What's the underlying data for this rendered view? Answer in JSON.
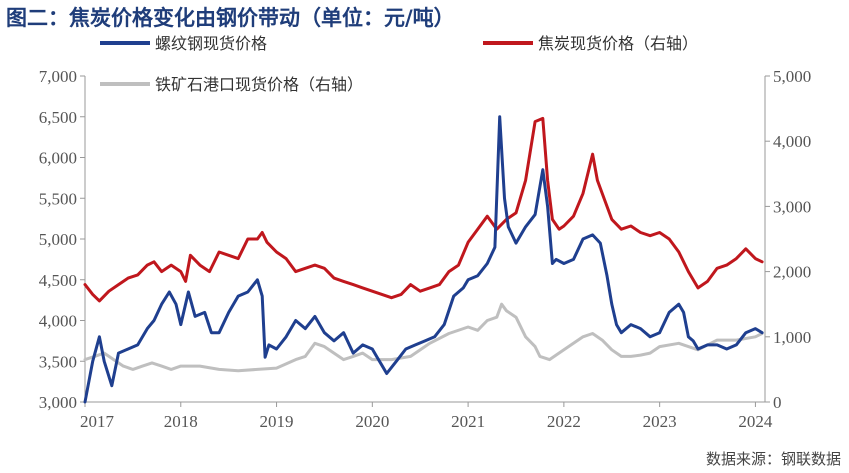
{
  "title": "图二：焦炭价格变化由钢价带动（单位：元/吨）",
  "source": "数据来源：钢联数据",
  "colors": {
    "rebar": "#1f3f8f",
    "coke": "#c0171d",
    "ore": "#bfbfbf"
  },
  "chart_data": {
    "type": "line",
    "x_tick_labels": [
      "2017",
      "2018",
      "2019",
      "2020",
      "2021",
      "2022",
      "2023",
      "2024"
    ],
    "y_left_ticks": [
      "3,000",
      "3,500",
      "4,000",
      "4,500",
      "5,000",
      "5,500",
      "6,000",
      "6,500",
      "7,000"
    ],
    "y_right_ticks": [
      "0",
      "1,000",
      "2,000",
      "3,000",
      "4,000",
      "5,000"
    ],
    "ylim_left": [
      3000,
      7000
    ],
    "ylim_right": [
      0,
      5000
    ],
    "xlim": [
      2017,
      2024.1
    ],
    "grid": false,
    "legend_position": "top",
    "series": [
      {
        "name": "螺纹钢现货价格",
        "axis": "left",
        "color": "#1f3f8f",
        "x": [
          2017.0,
          2017.08,
          2017.15,
          2017.2,
          2017.28,
          2017.35,
          2017.45,
          2017.55,
          2017.65,
          2017.72,
          2017.8,
          2017.88,
          2017.95,
          2018.0,
          2018.08,
          2018.15,
          2018.25,
          2018.32,
          2018.4,
          2018.5,
          2018.6,
          2018.7,
          2018.8,
          2018.85,
          2018.88,
          2018.92,
          2019.0,
          2019.1,
          2019.2,
          2019.3,
          2019.4,
          2019.5,
          2019.6,
          2019.7,
          2019.8,
          2019.9,
          2020.0,
          2020.05,
          2020.1,
          2020.15,
          2020.25,
          2020.35,
          2020.45,
          2020.55,
          2020.65,
          2020.75,
          2020.85,
          2020.95,
          2021.0,
          2021.1,
          2021.2,
          2021.28,
          2021.33,
          2021.38,
          2021.42,
          2021.5,
          2021.6,
          2021.7,
          2021.78,
          2021.83,
          2021.88,
          2021.92,
          2022.0,
          2022.1,
          2022.2,
          2022.3,
          2022.38,
          2022.45,
          2022.5,
          2022.55,
          2022.6,
          2022.7,
          2022.8,
          2022.9,
          2023.0,
          2023.1,
          2023.2,
          2023.25,
          2023.3,
          2023.35,
          2023.4,
          2023.5,
          2023.6,
          2023.7,
          2023.8,
          2023.9,
          2024.0,
          2024.07
        ],
        "y": [
          3000,
          3500,
          3800,
          3500,
          3200,
          3600,
          3650,
          3700,
          3900,
          4000,
          4200,
          4350,
          4200,
          3950,
          4350,
          4050,
          4100,
          3850,
          3850,
          4100,
          4300,
          4350,
          4500,
          4300,
          3550,
          3700,
          3650,
          3800,
          4000,
          3900,
          4050,
          3850,
          3750,
          3850,
          3600,
          3700,
          3650,
          3550,
          3450,
          3350,
          3500,
          3650,
          3700,
          3750,
          3800,
          3950,
          4300,
          4400,
          4500,
          4550,
          4700,
          4900,
          6500,
          5500,
          5150,
          4950,
          5150,
          5300,
          5850,
          5400,
          4700,
          4750,
          4700,
          4750,
          5000,
          5050,
          4950,
          4550,
          4200,
          3950,
          3850,
          3950,
          3900,
          3800,
          3850,
          4100,
          4200,
          4100,
          3800,
          3750,
          3650,
          3700,
          3700,
          3650,
          3700,
          3850,
          3900,
          3850
        ]
      },
      {
        "name": "焦炭现货价格（右轴）",
        "axis": "right",
        "color": "#c0171d",
        "x": [
          2017.0,
          2017.08,
          2017.15,
          2017.25,
          2017.35,
          2017.45,
          2017.55,
          2017.65,
          2017.72,
          2017.8,
          2017.9,
          2018.0,
          2018.05,
          2018.1,
          2018.2,
          2018.3,
          2018.4,
          2018.5,
          2018.6,
          2018.7,
          2018.8,
          2018.85,
          2018.9,
          2019.0,
          2019.1,
          2019.2,
          2019.3,
          2019.4,
          2019.5,
          2019.6,
          2019.7,
          2019.8,
          2019.9,
          2020.0,
          2020.1,
          2020.2,
          2020.3,
          2020.4,
          2020.5,
          2020.6,
          2020.7,
          2020.8,
          2020.9,
          2021.0,
          2021.1,
          2021.2,
          2021.3,
          2021.4,
          2021.5,
          2021.6,
          2021.7,
          2021.78,
          2021.83,
          2021.88,
          2021.95,
          2022.0,
          2022.1,
          2022.2,
          2022.3,
          2022.35,
          2022.4,
          2022.5,
          2022.6,
          2022.7,
          2022.8,
          2022.9,
          2023.0,
          2023.1,
          2023.2,
          2023.3,
          2023.4,
          2023.5,
          2023.6,
          2023.7,
          2023.8,
          2023.9,
          2024.0,
          2024.07
        ],
        "y": [
          1800,
          1650,
          1550,
          1700,
          1800,
          1900,
          1950,
          2100,
          2150,
          2000,
          2100,
          2000,
          1850,
          2250,
          2100,
          2000,
          2300,
          2250,
          2200,
          2500,
          2500,
          2600,
          2450,
          2300,
          2200,
          2000,
          2050,
          2100,
          2050,
          1900,
          1850,
          1800,
          1750,
          1700,
          1650,
          1600,
          1650,
          1800,
          1700,
          1750,
          1800,
          2000,
          2100,
          2450,
          2650,
          2850,
          2650,
          2800,
          2900,
          3400,
          4300,
          4350,
          3400,
          2800,
          2650,
          2700,
          2850,
          3200,
          3800,
          3400,
          3200,
          2800,
          2650,
          2700,
          2600,
          2550,
          2600,
          2500,
          2300,
          2000,
          1750,
          1850,
          2050,
          2100,
          2200,
          2350,
          2200,
          2150
        ]
      },
      {
        "name": "铁矿石港口现货价格（右轴）",
        "axis": "right",
        "color": "#bfbfbf",
        "x": [
          2017.0,
          2017.1,
          2017.2,
          2017.3,
          2017.4,
          2017.5,
          2017.6,
          2017.7,
          2017.8,
          2017.9,
          2018.0,
          2018.2,
          2018.4,
          2018.6,
          2018.8,
          2019.0,
          2019.2,
          2019.3,
          2019.4,
          2019.5,
          2019.6,
          2019.7,
          2019.8,
          2019.9,
          2020.0,
          2020.2,
          2020.4,
          2020.6,
          2020.8,
          2021.0,
          2021.1,
          2021.2,
          2021.3,
          2021.35,
          2021.4,
          2021.5,
          2021.6,
          2021.7,
          2021.75,
          2021.85,
          2022.0,
          2022.2,
          2022.3,
          2022.4,
          2022.5,
          2022.6,
          2022.7,
          2022.8,
          2022.9,
          2023.0,
          2023.2,
          2023.4,
          2023.6,
          2023.8,
          2024.0,
          2024.07
        ],
        "y": [
          650,
          700,
          750,
          650,
          550,
          500,
          550,
          600,
          550,
          500,
          550,
          550,
          500,
          480,
          500,
          520,
          650,
          700,
          900,
          850,
          750,
          650,
          700,
          750,
          650,
          650,
          700,
          900,
          1050,
          1150,
          1100,
          1250,
          1300,
          1500,
          1400,
          1300,
          1000,
          850,
          700,
          650,
          800,
          1000,
          1050,
          950,
          800,
          700,
          700,
          720,
          750,
          850,
          900,
          800,
          950,
          950,
          1000,
          1050
        ]
      }
    ]
  }
}
